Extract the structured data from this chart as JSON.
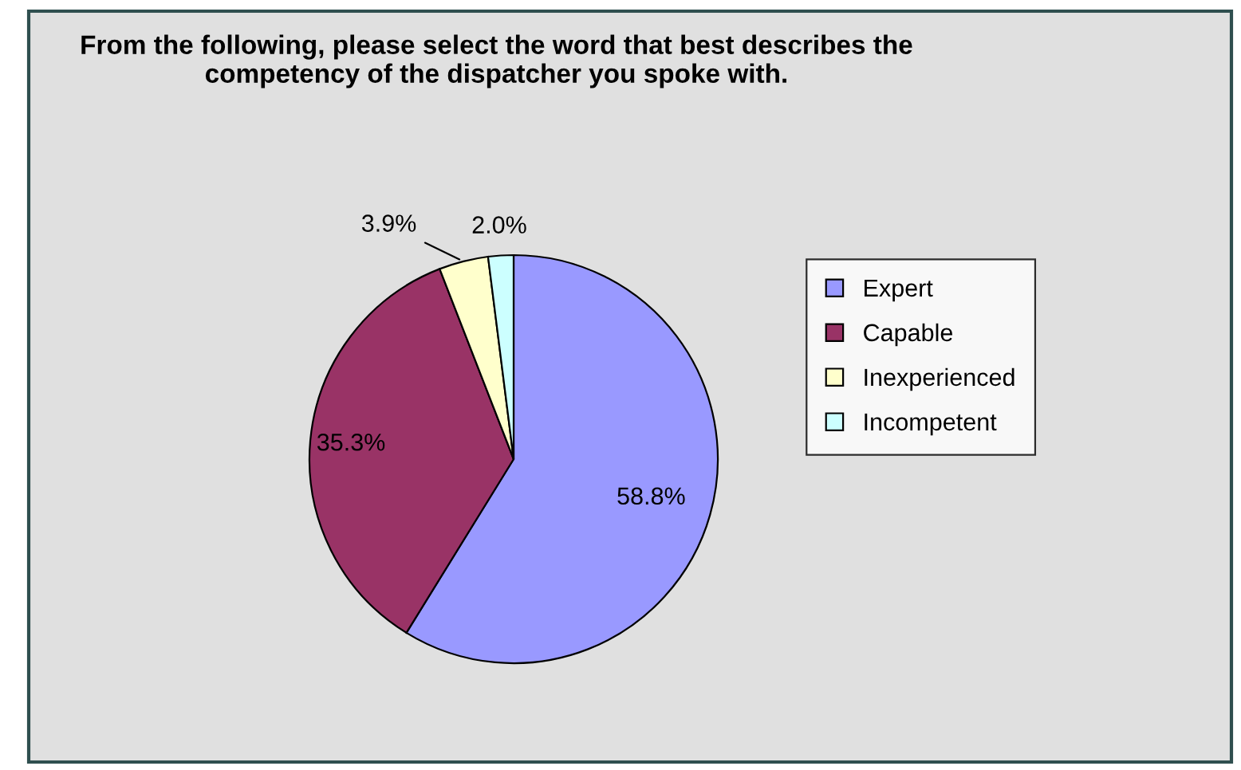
{
  "chart_data": {
    "type": "pie",
    "title": "From the following, please select the word that best describes the competency of the dispatcher you spoke with.",
    "categories": [
      "Expert",
      "Capable",
      "Inexperienced",
      "Incompetent"
    ],
    "values": [
      58.8,
      35.3,
      3.9,
      2.0
    ],
    "value_labels": [
      "58.8%",
      "35.3%",
      "3.9%",
      "2.0%"
    ],
    "colors": [
      "#9999ff",
      "#993366",
      "#ffffcc",
      "#ccffff"
    ],
    "legend": "right"
  }
}
